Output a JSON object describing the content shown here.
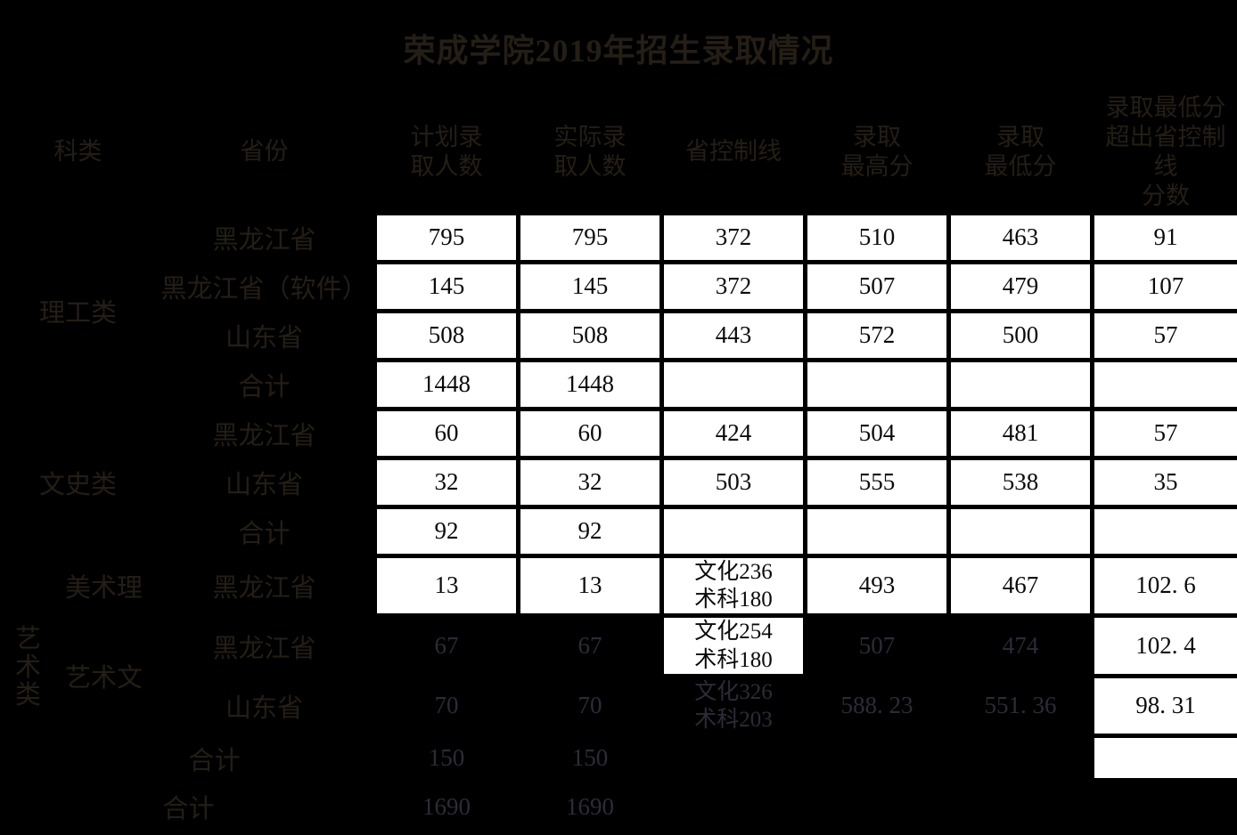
{
  "title": "荣成学院2019年招生录取情况",
  "colors": {
    "background": "#000000",
    "cell_background": "#ffffff",
    "cell_text": "#0a0a0a",
    "faint_label_text": "#241e16",
    "faint_number_text": "#2c2c38"
  },
  "table": {
    "headers": [
      "科类",
      "省份",
      "计划录\n取人数",
      "实际录\n取人数",
      "省控制线",
      "录取\n最高分",
      "录取\n最低分",
      "录取最低分\n超出省控制线\n分数"
    ],
    "rows": [
      {
        "cells": [
          {
            "t": "理工类",
            "k": "label",
            "cs": 2,
            "rs": 4
          },
          {
            "t": "黑龙江省",
            "k": "label"
          },
          {
            "t": "795",
            "k": "w"
          },
          {
            "t": "795",
            "k": "w"
          },
          {
            "t": "372",
            "k": "w"
          },
          {
            "t": "510",
            "k": "w"
          },
          {
            "t": "463",
            "k": "w"
          },
          {
            "t": "91",
            "k": "w"
          }
        ]
      },
      {
        "cells": [
          {
            "t": "黑龙江省（软件）",
            "k": "label"
          },
          {
            "t": "145",
            "k": "w"
          },
          {
            "t": "145",
            "k": "w"
          },
          {
            "t": "372",
            "k": "w"
          },
          {
            "t": "507",
            "k": "w"
          },
          {
            "t": "479",
            "k": "w"
          },
          {
            "t": "107",
            "k": "w"
          }
        ]
      },
      {
        "cells": [
          {
            "t": "山东省",
            "k": "label"
          },
          {
            "t": "508",
            "k": "w"
          },
          {
            "t": "508",
            "k": "w"
          },
          {
            "t": "443",
            "k": "w"
          },
          {
            "t": "572",
            "k": "w"
          },
          {
            "t": "500",
            "k": "w"
          },
          {
            "t": "57",
            "k": "w"
          }
        ]
      },
      {
        "cells": [
          {
            "t": "合计",
            "k": "label"
          },
          {
            "t": "1448",
            "k": "w"
          },
          {
            "t": "1448",
            "k": "w"
          },
          {
            "t": "",
            "k": "w"
          },
          {
            "t": "",
            "k": "w"
          },
          {
            "t": "",
            "k": "w"
          },
          {
            "t": "",
            "k": "w"
          }
        ]
      },
      {
        "cells": [
          {
            "t": "文史类",
            "k": "label",
            "cs": 2,
            "rs": 3
          },
          {
            "t": "黑龙江省",
            "k": "label"
          },
          {
            "t": "60",
            "k": "w"
          },
          {
            "t": "60",
            "k": "w"
          },
          {
            "t": "424",
            "k": "w"
          },
          {
            "t": "504",
            "k": "w"
          },
          {
            "t": "481",
            "k": "w"
          },
          {
            "t": "57",
            "k": "w"
          }
        ]
      },
      {
        "cells": [
          {
            "t": "山东省",
            "k": "label"
          },
          {
            "t": "32",
            "k": "w"
          },
          {
            "t": "32",
            "k": "w"
          },
          {
            "t": "503",
            "k": "w"
          },
          {
            "t": "555",
            "k": "w"
          },
          {
            "t": "538",
            "k": "w"
          },
          {
            "t": "35",
            "k": "w"
          }
        ]
      },
      {
        "cells": [
          {
            "t": "合计",
            "k": "label"
          },
          {
            "t": "92",
            "k": "w"
          },
          {
            "t": "92",
            "k": "w"
          },
          {
            "t": "",
            "k": "w"
          },
          {
            "t": "",
            "k": "w"
          },
          {
            "t": "",
            "k": "w"
          },
          {
            "t": "",
            "k": "w"
          }
        ]
      },
      {
        "cells": [
          {
            "t": "艺术类",
            "k": "label vert",
            "rs": 4
          },
          {
            "t": "美术理",
            "k": "label"
          },
          {
            "t": "黑龙江省",
            "k": "label"
          },
          {
            "t": "13",
            "k": "w"
          },
          {
            "t": "13",
            "k": "w"
          },
          {
            "t": "文化236\n术科180",
            "k": "w two"
          },
          {
            "t": "493",
            "k": "w"
          },
          {
            "t": "467",
            "k": "w"
          },
          {
            "t": "102. 6",
            "k": "w"
          }
        ]
      },
      {
        "cells": [
          {
            "t": "艺术文",
            "k": "label",
            "rs": 2
          },
          {
            "t": "黑龙江省",
            "k": "label"
          },
          {
            "t": "67",
            "k": "dark"
          },
          {
            "t": "67",
            "k": "dark"
          },
          {
            "t": "文化254\n术科180",
            "k": "w two"
          },
          {
            "t": "507",
            "k": "dark"
          },
          {
            "t": "474",
            "k": "dark"
          },
          {
            "t": "102. 4",
            "k": "w"
          }
        ]
      },
      {
        "cells": [
          {
            "t": "山东省",
            "k": "label"
          },
          {
            "t": "70",
            "k": "dark"
          },
          {
            "t": "70",
            "k": "dark"
          },
          {
            "t": "文化326\n术科203",
            "k": "dark two"
          },
          {
            "t": "588. 23",
            "k": "dark"
          },
          {
            "t": "551. 36",
            "k": "dark"
          },
          {
            "t": "98. 31",
            "k": "w"
          }
        ]
      },
      {
        "cells": [
          {
            "t": "合计",
            "k": "label",
            "cs": 2
          },
          {
            "t": "150",
            "k": "dark"
          },
          {
            "t": "150",
            "k": "dark"
          },
          {
            "t": "",
            "k": "dark"
          },
          {
            "t": "",
            "k": "dark"
          },
          {
            "t": "",
            "k": "dark"
          },
          {
            "t": "",
            "k": "w"
          }
        ]
      },
      {
        "cells": [
          {
            "t": "合计",
            "k": "label",
            "cs": 3
          },
          {
            "t": "1690",
            "k": "dark"
          },
          {
            "t": "1690",
            "k": "dark"
          },
          {
            "t": "",
            "k": "dark"
          },
          {
            "t": "",
            "k": "dark"
          },
          {
            "t": "",
            "k": "dark"
          },
          {
            "t": "",
            "k": "dark"
          }
        ]
      }
    ]
  }
}
